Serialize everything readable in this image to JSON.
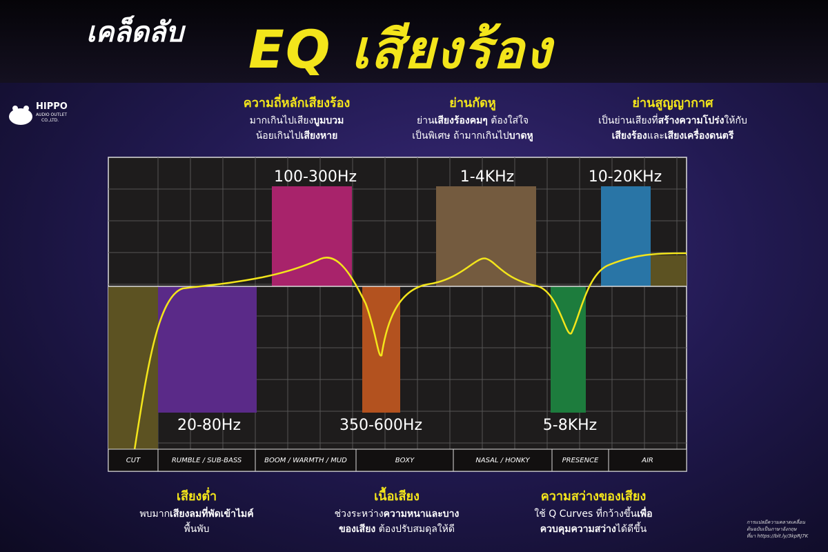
{
  "header": {
    "title_small": "เคล็ดลับ",
    "title_large": "EQ เสียงร้อง"
  },
  "logo": {
    "name": "HIPPO",
    "line2": "AUDIO OUTLET",
    "line3": "CO.,LTD."
  },
  "top_notes": [
    {
      "heading": "ความถี่หลักเสียงร้อง",
      "lines": [
        [
          {
            "text": "มากเกินไปเสียง",
            "bold": false
          },
          {
            "text": "บูมบวม",
            "bold": true
          }
        ],
        [
          {
            "text": "น้อยเกินไป",
            "bold": false
          },
          {
            "text": "เสียงหาย",
            "bold": true
          }
        ]
      ]
    },
    {
      "heading": "ย่านกัดหู",
      "lines": [
        [
          {
            "text": "ย่าน",
            "bold": false
          },
          {
            "text": "เสียงร้องคมๆ",
            "bold": true
          },
          {
            "text": " ต้องใส่ใจ",
            "bold": false
          }
        ],
        [
          {
            "text": "เป็นพิเศษ ถ้ามากเกินไป",
            "bold": false
          },
          {
            "text": "บาดหู",
            "bold": true
          }
        ]
      ]
    },
    {
      "heading": "ย่านสูญญากาศ",
      "lines": [
        [
          {
            "text": "เป็นย่านเสียงที่",
            "bold": false
          },
          {
            "text": "สร้างความโปร่ง",
            "bold": true
          },
          {
            "text": "ให้กับ",
            "bold": false
          }
        ],
        [
          {
            "text": "เสียงร้อง",
            "bold": true
          },
          {
            "text": "และ",
            "bold": false
          },
          {
            "text": "เสียงเครื่องดนตรี",
            "bold": true
          }
        ]
      ]
    }
  ],
  "band_labels": [
    "100-300Hz",
    "1-4KHz",
    "10-20KHz",
    "20-80Hz",
    "350-600Hz",
    "5-8KHz"
  ],
  "regions": [
    "CUT",
    "RUMBLE / SUB-BASS",
    "BOOM / WARMTH / MUD",
    "BOXY",
    "NASAL / HONKY",
    "PRESENCE",
    "AIR"
  ],
  "bottom_notes": [
    {
      "heading": "เสียงต่ำ",
      "lines": [
        [
          {
            "text": "พบมาก",
            "bold": false
          },
          {
            "text": "เสียงลมที่พัดเข้าไมค์",
            "bold": true
          }
        ],
        [
          {
            "text": "พื้นพับ",
            "bold": false
          }
        ]
      ]
    },
    {
      "heading": "เนื้อเสียง",
      "lines": [
        [
          {
            "text": "ช่วงระหว่าง",
            "bold": false
          },
          {
            "text": "ความหนาและบาง",
            "bold": true
          }
        ],
        [
          {
            "text": "ของเสียง",
            "bold": true
          },
          {
            "text": " ต้องปรับสมดุลให้ดี",
            "bold": false
          }
        ]
      ]
    },
    {
      "heading": "ความสว่างของเสียง",
      "lines": [
        [
          {
            "text": "ใช้ Q Curves ที่กว้างขึ้น",
            "bold": false
          },
          {
            "text": "เพื่อ",
            "bold": true
          }
        ],
        [
          {
            "text": "ควบคุมความสว่าง",
            "bold": true
          },
          {
            "text": "ได้ดีขึ้น",
            "bold": false
          }
        ]
      ]
    }
  ],
  "source_note": [
    "การแปลมีความคลาดเคลื่อน",
    "ต้นฉบับเป็นภาษาอังกฤษ",
    "ที่มา https://bit.ly/3kpRJ7K"
  ]
}
